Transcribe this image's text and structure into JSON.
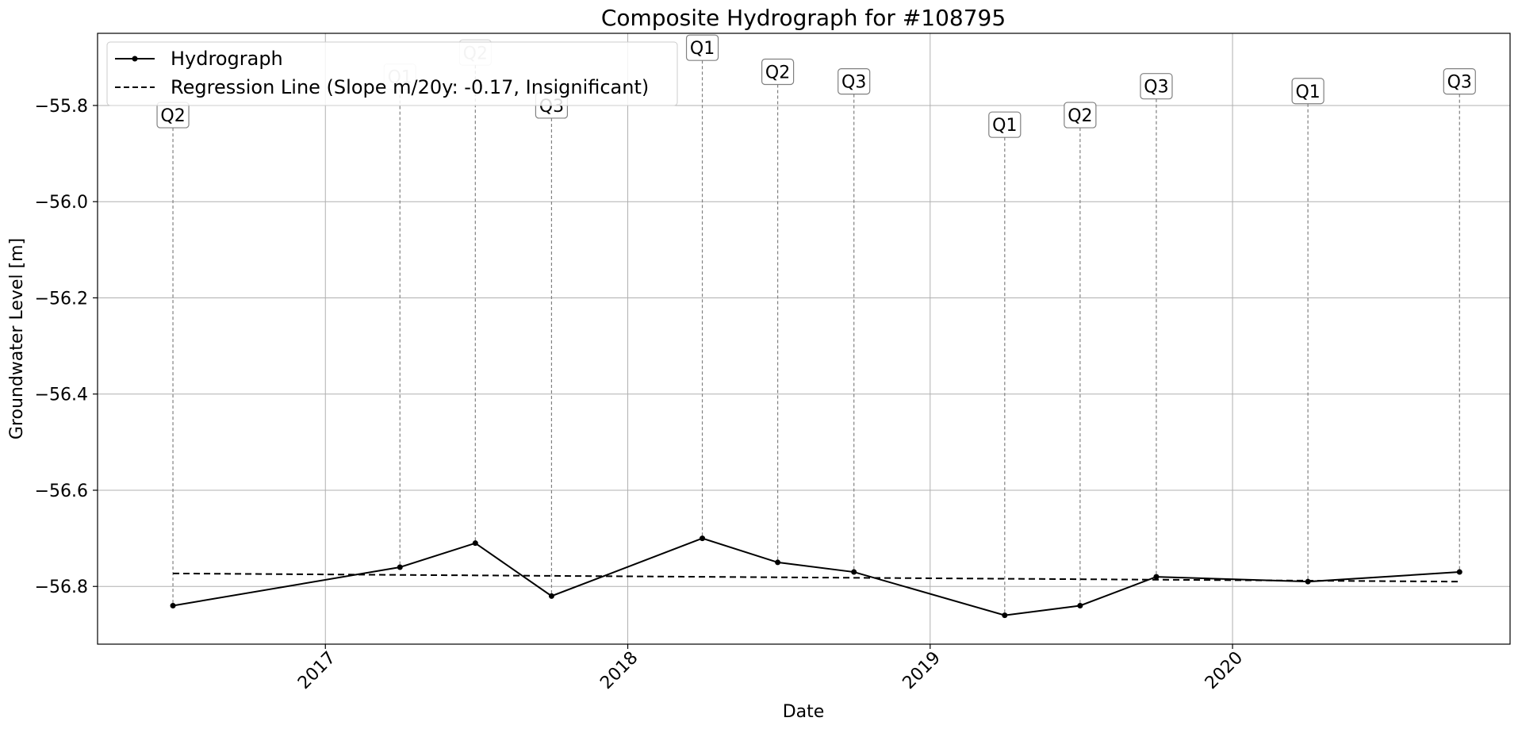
{
  "chart_data": {
    "type": "line",
    "title": "Composite Hydrograph for  #108795",
    "xlabel": "Date",
    "ylabel": "Groundwater Level [m]",
    "x_range": [
      "2016-04-01",
      "2020-12-01"
    ],
    "ylim": [
      -56.92,
      -55.65
    ],
    "y_ticks": [
      -55.8,
      -56.0,
      -56.2,
      -56.4,
      -56.6,
      -56.8
    ],
    "y_tick_labels": [
      "−55.8",
      "−56.0",
      "−56.2",
      "−56.4",
      "−56.6",
      "−56.8"
    ],
    "x_ticks": [
      "2017-01-01",
      "2018-01-01",
      "2019-01-01",
      "2020-01-01"
    ],
    "x_tick_labels": [
      "2017",
      "2018",
      "2019",
      "2020"
    ],
    "grid": true,
    "legend_position": "top-left",
    "legend": [
      "Hydrograph",
      "Regression Line (Slope m/20y: -0.17, Insignificant)"
    ],
    "series": [
      {
        "name": "Hydrograph",
        "color": "#000000",
        "x": [
          "2016-07-01",
          "2017-04-01",
          "2017-07-01",
          "2017-10-01",
          "2018-04-01",
          "2018-07-01",
          "2018-10-01",
          "2019-04-01",
          "2019-07-01",
          "2019-10-01",
          "2020-04-01",
          "2020-10-01"
        ],
        "y": [
          -56.84,
          -56.76,
          -56.71,
          -56.82,
          -56.7,
          -56.75,
          -56.77,
          -56.86,
          -56.84,
          -56.78,
          -56.79,
          -56.77
        ]
      },
      {
        "name": "Regression Line (Slope m/20y: -0.17, Insignificant)",
        "color": "#000000",
        "x": [
          "2016-07-01",
          "2020-10-01"
        ],
        "y": [
          -56.773,
          -56.79
        ]
      }
    ],
    "annotations": [
      {
        "x": "2016-07-01",
        "label": "Q2",
        "y": -55.82,
        "faded": false
      },
      {
        "x": "2017-04-01",
        "label": "Q1",
        "y": -55.74,
        "faded": true
      },
      {
        "x": "2017-07-01",
        "label": "Q2",
        "y": -55.69,
        "faded": true
      },
      {
        "x": "2017-10-01",
        "label": "Q3",
        "y": -55.8,
        "faded": false
      },
      {
        "x": "2018-04-01",
        "label": "Q1",
        "y": -55.68,
        "faded": false
      },
      {
        "x": "2018-07-01",
        "label": "Q2",
        "y": -55.73,
        "faded": false
      },
      {
        "x": "2018-10-01",
        "label": "Q3",
        "y": -55.75,
        "faded": false
      },
      {
        "x": "2019-04-01",
        "label": "Q1",
        "y": -55.84,
        "faded": false
      },
      {
        "x": "2019-07-01",
        "label": "Q2",
        "y": -55.82,
        "faded": false
      },
      {
        "x": "2019-10-01",
        "label": "Q3",
        "y": -55.76,
        "faded": false
      },
      {
        "x": "2020-04-01",
        "label": "Q1",
        "y": -55.77,
        "faded": false
      },
      {
        "x": "2020-10-01",
        "label": "Q3",
        "y": -55.75,
        "faded": false
      }
    ]
  }
}
